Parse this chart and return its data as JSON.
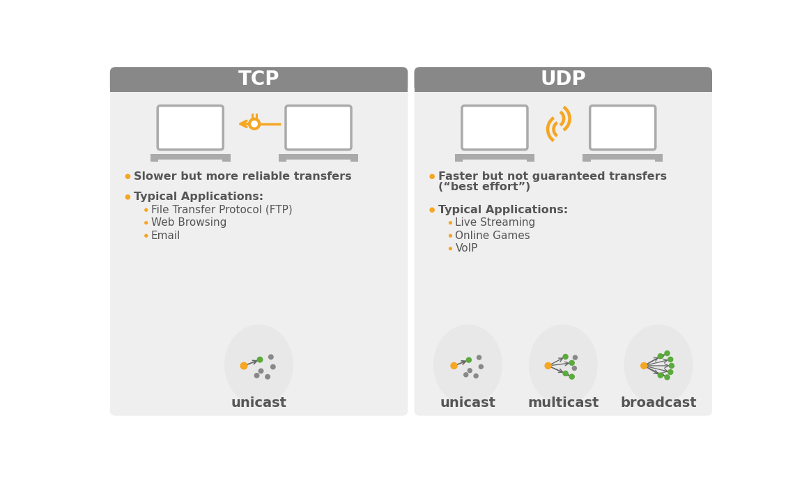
{
  "bg_color": "#ffffff",
  "panel_bg": "#f0f0f0",
  "header_color": "#888888",
  "header_text_color": "#ffffff",
  "orange": "#f5a623",
  "green": "#5aaa3c",
  "dark_gray": "#555555",
  "mid_gray": "#888888",
  "laptop_gray": "#aaaaaa",
  "circle_bg": "#e8e8e8",
  "tcp_title": "TCP",
  "udp_title": "UDP",
  "tcp_bullet1": "Slower but more reliable transfers",
  "tcp_bullet2": "Typical Applications:",
  "tcp_sub1": "File Transfer Protocol (FTP)",
  "tcp_sub2": "Web Browsing",
  "tcp_sub3": "Email",
  "tcp_cast_label": "unicast",
  "udp_bullet1_a": "Faster but not guaranteed transfers",
  "udp_bullet1_b": "(“best effort”)",
  "udp_bullet2": "Typical Applications:",
  "udp_sub1": "Live Streaming",
  "udp_sub2": "Online Games",
  "udp_sub3": "VoIP",
  "udp_cast1": "unicast",
  "udp_cast2": "multicast",
  "udp_cast3": "broadcast"
}
